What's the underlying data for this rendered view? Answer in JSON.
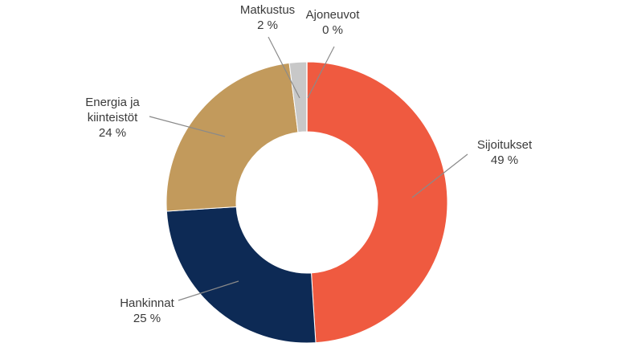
{
  "chart_data": {
    "type": "pie",
    "donut": true,
    "start": "top",
    "direction": "clockwise",
    "slices": [
      {
        "label": "Sijoitukset",
        "value": 49,
        "value_label": "49 %",
        "color": "#ef5a40"
      },
      {
        "label": "Hankinnat",
        "value": 25,
        "value_label": "25 %",
        "color": "#0d2a55"
      },
      {
        "label": "Energia ja kiinteistöt",
        "label_lines": [
          "Energia ja",
          "kiinteistöt"
        ],
        "value": 24,
        "value_label": "24 %",
        "color": "#c29a5c"
      },
      {
        "label": "Matkustus",
        "value": 2,
        "value_label": "2 %",
        "color": "#c8c8c8"
      },
      {
        "label": "Ajoneuvot",
        "value": 0,
        "value_label": "0 %",
        "color": "#9a9a9a"
      }
    ]
  }
}
